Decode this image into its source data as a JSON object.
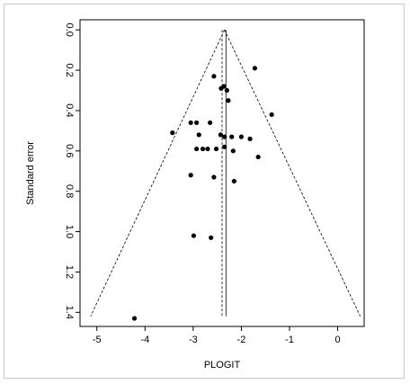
{
  "chart_data": {
    "type": "scatter",
    "subtype": "funnel-plot",
    "title": "",
    "xlabel": "PLOGIT",
    "ylabel": "Standard error",
    "xlim": [
      -5.35,
      0.55
    ],
    "ylim": [
      -0.05,
      1.47
    ],
    "y_axis_reversed": true,
    "x_ticks": [
      -5,
      -4,
      -3,
      -2,
      -1,
      0
    ],
    "x_tick_labels": [
      "-5",
      "-4",
      "-3",
      "-2",
      "-1",
      "0"
    ],
    "y_ticks": [
      0.0,
      0.2,
      0.4,
      0.6,
      0.8,
      1.0,
      1.2,
      1.4
    ],
    "y_tick_labels": [
      "0.0",
      "0.2",
      "0.4",
      "0.6",
      "0.8",
      "1.0",
      "1.2",
      "1.4"
    ],
    "grid": false,
    "pooled_estimate": -2.35,
    "funnel_lines": {
      "apex": [
        -2.35,
        0.0
      ],
      "bottom_se": 1.42,
      "bottom_left_x": -5.13,
      "bottom_right_x": 0.47
    },
    "reference_lines_x": [
      -2.4,
      -2.32
    ],
    "points": [
      {
        "x": -1.72,
        "y": 0.19
      },
      {
        "x": -2.57,
        "y": 0.23
      },
      {
        "x": -2.42,
        "y": 0.29
      },
      {
        "x": -2.3,
        "y": 0.3
      },
      {
        "x": -2.36,
        "y": 0.28
      },
      {
        "x": -2.27,
        "y": 0.35
      },
      {
        "x": -1.37,
        "y": 0.42
      },
      {
        "x": -3.05,
        "y": 0.46
      },
      {
        "x": -2.93,
        "y": 0.46
      },
      {
        "x": -2.65,
        "y": 0.46
      },
      {
        "x": -3.43,
        "y": 0.51
      },
      {
        "x": -2.88,
        "y": 0.52
      },
      {
        "x": -2.43,
        "y": 0.52
      },
      {
        "x": -2.35,
        "y": 0.53
      },
      {
        "x": -2.2,
        "y": 0.53
      },
      {
        "x": -2.0,
        "y": 0.53
      },
      {
        "x": -1.82,
        "y": 0.54
      },
      {
        "x": -2.93,
        "y": 0.59
      },
      {
        "x": -2.8,
        "y": 0.59
      },
      {
        "x": -2.7,
        "y": 0.59
      },
      {
        "x": -2.52,
        "y": 0.59
      },
      {
        "x": -2.35,
        "y": 0.58
      },
      {
        "x": -2.17,
        "y": 0.6
      },
      {
        "x": -1.65,
        "y": 0.63
      },
      {
        "x": -3.05,
        "y": 0.72
      },
      {
        "x": -2.57,
        "y": 0.73
      },
      {
        "x": -2.15,
        "y": 0.75
      },
      {
        "x": -2.99,
        "y": 1.02
      },
      {
        "x": -2.63,
        "y": 1.03
      },
      {
        "x": -4.22,
        "y": 1.43
      }
    ]
  }
}
